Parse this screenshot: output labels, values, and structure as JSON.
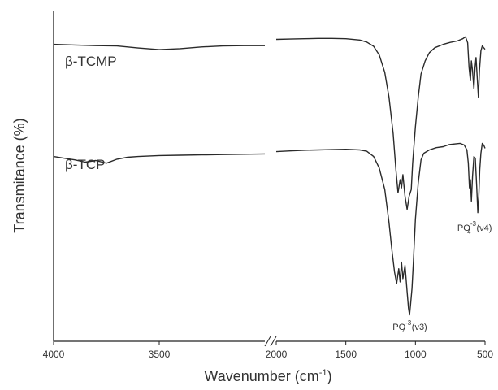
{
  "chart_data": {
    "type": "line",
    "xlabel": "Wavenumber (cm",
    "xlabel_sup": "-1",
    "xlabel_end": ")",
    "ylabel": "Transmitance (%)",
    "x_reversed": true,
    "axis_break": "between 3000 and 2000",
    "x_segments": [
      {
        "range": [
          4000,
          3000
        ],
        "ticks": [
          4000,
          3500
        ]
      },
      {
        "range": [
          2000,
          500
        ],
        "ticks": [
          2000,
          1500,
          1000,
          500
        ]
      }
    ],
    "y_ticks": "none",
    "ylim": [
      0,
      100
    ],
    "series": [
      {
        "name": "β-TCMP",
        "label_position": "upper-left",
        "points": [
          [
            4000,
            90.0
          ],
          [
            3900,
            89.8
          ],
          [
            3800,
            89.6
          ],
          [
            3700,
            89.5
          ],
          [
            3600,
            88.9
          ],
          [
            3500,
            88.4
          ],
          [
            3400,
            88.7
          ],
          [
            3300,
            89.2
          ],
          [
            3200,
            89.5
          ],
          [
            3100,
            89.6
          ],
          [
            3000,
            89.6
          ],
          [
            2000,
            91.5
          ],
          [
            1900,
            91.6
          ],
          [
            1800,
            91.7
          ],
          [
            1700,
            91.8
          ],
          [
            1600,
            91.8
          ],
          [
            1500,
            91.7
          ],
          [
            1400,
            91.3
          ],
          [
            1350,
            90.7
          ],
          [
            1300,
            89.4
          ],
          [
            1260,
            86.8
          ],
          [
            1220,
            81.5
          ],
          [
            1190,
            74.0
          ],
          [
            1160,
            63.0
          ],
          [
            1140,
            52.0
          ],
          [
            1125,
            45.0
          ],
          [
            1110,
            49.0
          ],
          [
            1100,
            46.5
          ],
          [
            1090,
            50.5
          ],
          [
            1075,
            44.0
          ],
          [
            1060,
            40.0
          ],
          [
            1045,
            44.0
          ],
          [
            1030,
            46.0
          ],
          [
            1020,
            54.0
          ],
          [
            1000,
            65.0
          ],
          [
            980,
            74.0
          ],
          [
            960,
            81.0
          ],
          [
            930,
            85.0
          ],
          [
            900,
            87.5
          ],
          [
            860,
            89.0
          ],
          [
            800,
            90.0
          ],
          [
            750,
            90.6
          ],
          [
            700,
            91.0
          ],
          [
            660,
            91.7
          ],
          [
            640,
            92.3
          ],
          [
            625,
            90.5
          ],
          [
            615,
            83.0
          ],
          [
            605,
            79.0
          ],
          [
            598,
            85.0
          ],
          [
            590,
            82.0
          ],
          [
            580,
            76.5
          ],
          [
            572,
            83.0
          ],
          [
            565,
            86.0
          ],
          [
            555,
            79.0
          ],
          [
            548,
            74.0
          ],
          [
            540,
            82.0
          ],
          [
            530,
            88.0
          ],
          [
            520,
            89.5
          ],
          [
            510,
            89.0
          ],
          [
            500,
            88.5
          ]
        ]
      },
      {
        "name": "β-TCP",
        "label_position": "left",
        "points": [
          [
            4000,
            56.0
          ],
          [
            3950,
            55.5
          ],
          [
            3900,
            55.0
          ],
          [
            3850,
            54.3
          ],
          [
            3800,
            54.8
          ],
          [
            3750,
            54.0
          ],
          [
            3700,
            55.2
          ],
          [
            3650,
            55.8
          ],
          [
            3600,
            56.0
          ],
          [
            3500,
            56.3
          ],
          [
            3400,
            56.4
          ],
          [
            3300,
            56.5
          ],
          [
            3200,
            56.6
          ],
          [
            3100,
            56.7
          ],
          [
            3000,
            56.8
          ],
          [
            2000,
            57.5
          ],
          [
            1900,
            57.7
          ],
          [
            1800,
            57.9
          ],
          [
            1700,
            58.0
          ],
          [
            1600,
            58.1
          ],
          [
            1500,
            58.2
          ],
          [
            1400,
            58.0
          ],
          [
            1350,
            57.6
          ],
          [
            1300,
            56.0
          ],
          [
            1260,
            52.5
          ],
          [
            1220,
            46.0
          ],
          [
            1190,
            36.0
          ],
          [
            1170,
            28.0
          ],
          [
            1150,
            21.0
          ],
          [
            1135,
            17.5
          ],
          [
            1120,
            22.0
          ],
          [
            1110,
            18.0
          ],
          [
            1100,
            24.0
          ],
          [
            1090,
            19.0
          ],
          [
            1075,
            23.0
          ],
          [
            1060,
            15.0
          ],
          [
            1050,
            10.0
          ],
          [
            1042,
            8.0
          ],
          [
            1035,
            11.0
          ],
          [
            1025,
            16.0
          ],
          [
            1015,
            24.0
          ],
          [
            1000,
            37.0
          ],
          [
            980,
            48.0
          ],
          [
            960,
            55.0
          ],
          [
            940,
            57.0
          ],
          [
            900,
            58.0
          ],
          [
            850,
            58.7
          ],
          [
            800,
            59.0
          ],
          [
            760,
            59.6
          ],
          [
            720,
            59.8
          ],
          [
            680,
            60.0
          ],
          [
            650,
            59.5
          ],
          [
            630,
            58.0
          ],
          [
            620,
            54.0
          ],
          [
            612,
            46.5
          ],
          [
            605,
            49.0
          ],
          [
            598,
            42.5
          ],
          [
            590,
            50.0
          ],
          [
            580,
            56.0
          ],
          [
            570,
            55.5
          ],
          [
            560,
            47.0
          ],
          [
            552,
            39.0
          ],
          [
            545,
            44.0
          ],
          [
            538,
            52.0
          ],
          [
            530,
            57.0
          ],
          [
            520,
            60.0
          ],
          [
            510,
            59.5
          ],
          [
            500,
            58.5
          ]
        ]
      }
    ],
    "annotations": [
      {
        "name": "v3-band",
        "base": "PO",
        "sub": "4",
        "sup": "-3",
        "suffix": " (ν3)",
        "at": [
          1040,
          3.5
        ]
      },
      {
        "name": "v4-band",
        "base": "PO",
        "sub": "4",
        "sup": "-3",
        "suffix": " (ν4)",
        "at": [
          575,
          33.5
        ]
      }
    ]
  }
}
